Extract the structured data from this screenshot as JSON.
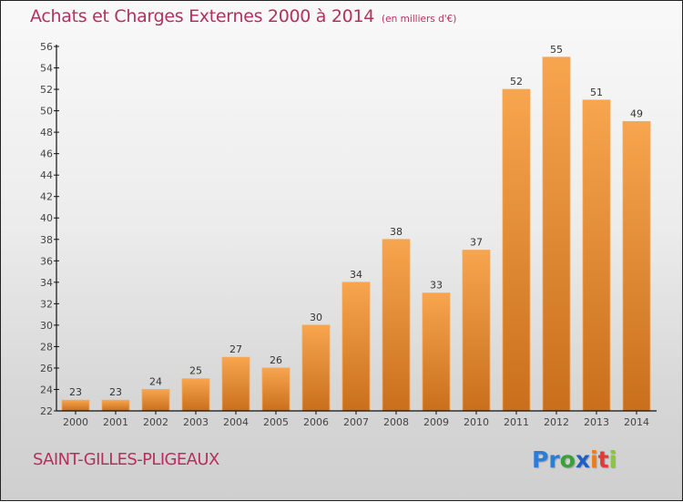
{
  "header": {
    "title": "Achats et Charges Externes 2000 à 2014",
    "unit": "(en milliers d'€)"
  },
  "footer": {
    "town": "SAINT-GILLES-PLIGEAUX",
    "brand": {
      "letters": [
        {
          "ch": "P",
          "color": "#2a7fd4"
        },
        {
          "ch": "r",
          "color": "#2a7fd4"
        },
        {
          "ch": "o",
          "color": "#3aa03a"
        },
        {
          "ch": "x",
          "color": "#1f5fc4"
        },
        {
          "ch": "i",
          "color": "#f07a1a"
        },
        {
          "ch": "t",
          "color": "#e03a3a"
        },
        {
          "ch": "i",
          "color": "#8cc63f"
        }
      ]
    }
  },
  "colors": {
    "bar_top": "#f7a54e",
    "bar_bottom": "#c96f1c",
    "title": "#b3315f"
  },
  "chart_data": {
    "type": "bar",
    "title": "Achats et Charges Externes 2000 à 2014",
    "subtitle": "(en milliers d'€)",
    "xlabel": "",
    "ylabel": "",
    "categories": [
      "2000",
      "2001",
      "2002",
      "2003",
      "2004",
      "2005",
      "2006",
      "2007",
      "2008",
      "2009",
      "2010",
      "2011",
      "2012",
      "2013",
      "2014"
    ],
    "values": [
      23,
      23,
      24,
      25,
      27,
      26,
      30,
      34,
      38,
      33,
      37,
      52,
      55,
      51,
      49
    ],
    "ylim": [
      22,
      56
    ],
    "yticks": [
      22,
      24,
      26,
      28,
      30,
      32,
      34,
      36,
      38,
      40,
      42,
      44,
      46,
      48,
      50,
      52,
      54,
      56
    ],
    "grid": false,
    "legend": "none"
  }
}
